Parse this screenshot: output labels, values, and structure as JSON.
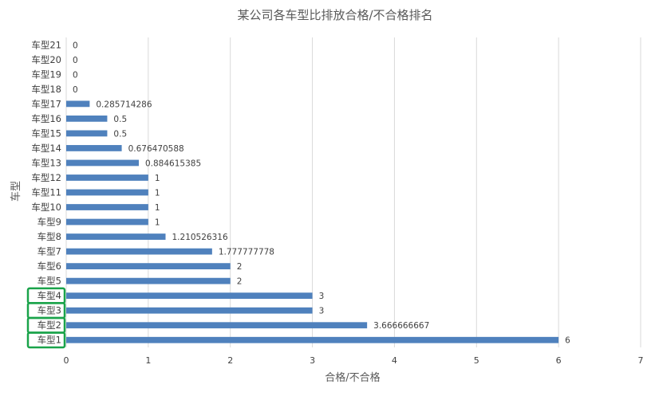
{
  "chart_data": {
    "type": "bar",
    "orientation": "horizontal",
    "title": "某公司各车型比排放合格/不合格排名",
    "xlabel": "合格/不合格",
    "ylabel": "车型",
    "xlim": [
      0,
      7
    ],
    "xticks": [
      "0",
      "1",
      "2",
      "3",
      "4",
      "5",
      "6",
      "7"
    ],
    "grid": true,
    "bar_color": "#4f81bd",
    "highlight_color": "#1aa34a",
    "highlighted_categories": [
      "车型1",
      "车型2",
      "车型3",
      "车型4"
    ],
    "categories": [
      "车型1",
      "车型2",
      "车型3",
      "车型4",
      "车型5",
      "车型6",
      "车型7",
      "车型8",
      "车型9",
      "车型10",
      "车型11",
      "车型12",
      "车型13",
      "车型14",
      "车型15",
      "车型16",
      "车型17",
      "车型18",
      "车型19",
      "车型20",
      "车型21"
    ],
    "values": [
      6,
      3.666666667,
      3,
      3,
      2,
      2,
      1.777777778,
      1.210526316,
      1,
      1,
      1,
      1,
      0.884615385,
      0.676470588,
      0.5,
      0.5,
      0.285714286,
      0,
      0,
      0,
      0
    ],
    "value_labels": [
      "6",
      "3.666666667",
      "3",
      "3",
      "2",
      "2",
      "1.777777778",
      "1.210526316",
      "1",
      "1",
      "1",
      "1",
      "0.884615385",
      "0.676470588",
      "0.5",
      "0.5",
      "0.285714286",
      "0",
      "0",
      "0",
      "0"
    ]
  }
}
